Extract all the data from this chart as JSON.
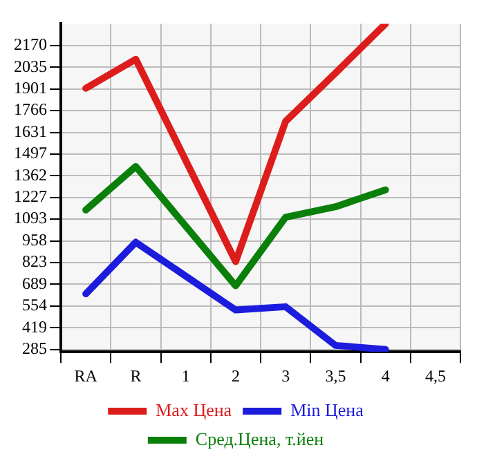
{
  "chart_data": {
    "type": "line",
    "categories": [
      "RA",
      "R",
      "1",
      "2",
      "3",
      "3,5",
      "4",
      "4,5"
    ],
    "series": [
      {
        "name": "Max Цена",
        "color": "#dd1c1c",
        "values": [
          1905,
          2085,
          null,
          830,
          1700,
          2000,
          2305,
          null
        ]
      },
      {
        "name": "Min Цена",
        "color": "#1c1cdd",
        "values": [
          630,
          950,
          null,
          530,
          550,
          310,
          285,
          null
        ]
      },
      {
        "name": "Сред.Цена, т.йен",
        "color": "#0a800a",
        "values": [
          1150,
          1420,
          null,
          680,
          1105,
          1170,
          1275,
          null
        ]
      }
    ],
    "ylim": [
      270,
      2305
    ],
    "yticks": [
      285,
      419,
      554,
      689,
      823,
      958,
      1093,
      1227,
      1362,
      1497,
      1631,
      1766,
      1901,
      2035,
      2170
    ],
    "grid": true,
    "legend": "bottom",
    "marker": "none",
    "line_style": "solid"
  }
}
